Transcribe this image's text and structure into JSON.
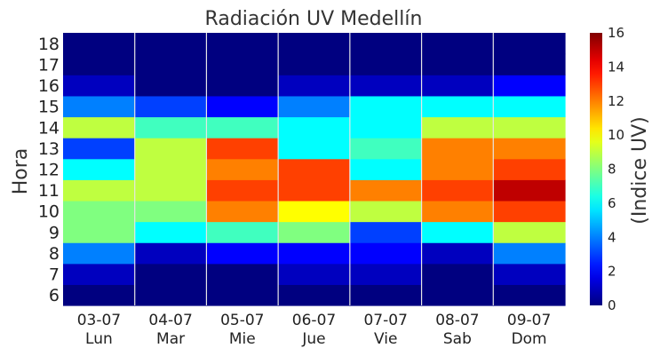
{
  "chart_data": {
    "type": "heatmap",
    "title": "Radiación UV Medellín",
    "ylabel": "Hora",
    "colorbar_label": "(Indice UV)",
    "colormap": "jet",
    "vmin": 0,
    "vmax": 16,
    "colorbar_ticks": [
      0,
      2,
      4,
      6,
      8,
      10,
      12,
      14,
      16
    ],
    "x_dates": [
      "03-07",
      "04-07",
      "05-07",
      "06-07",
      "07-07",
      "08-07",
      "09-07"
    ],
    "x_days": [
      "Lun",
      "Mar",
      "Mie",
      "Jue",
      "Vie",
      "Sab",
      "Dom"
    ],
    "hours": [
      6,
      7,
      8,
      9,
      10,
      11,
      12,
      13,
      14,
      15,
      16,
      17,
      18
    ],
    "values": [
      [
        0,
        0,
        0,
        0,
        0,
        0,
        0
      ],
      [
        1,
        0,
        0,
        1,
        1,
        0,
        1
      ],
      [
        4,
        1,
        2,
        2,
        2,
        1,
        4
      ],
      [
        8,
        6,
        7,
        8,
        3,
        6,
        9
      ],
      [
        8,
        8,
        12,
        10,
        9,
        12,
        13
      ],
      [
        9,
        9,
        13,
        13,
        12,
        13,
        15
      ],
      [
        6,
        9,
        12,
        13,
        6,
        12,
        13
      ],
      [
        3,
        9,
        13,
        6,
        7,
        12,
        12
      ],
      [
        9,
        7,
        7,
        6,
        6,
        9,
        9
      ],
      [
        4,
        3,
        2,
        4,
        6,
        6,
        6
      ],
      [
        1,
        0,
        0,
        1,
        1,
        1,
        2
      ],
      [
        0,
        0,
        0,
        0,
        0,
        0,
        0
      ],
      [
        0,
        0,
        0,
        0,
        0,
        0,
        0
      ]
    ]
  }
}
